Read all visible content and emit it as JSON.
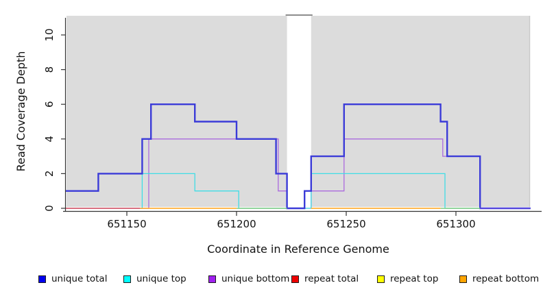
{
  "figure": {
    "xlabel": "Coordinate in Reference Genome",
    "ylabel": "Read Coverage Depth",
    "plot_bg_color": "#dcdcdc",
    "mask_band_color": "#ffffff",
    "axis_color": "#333333",
    "text_color": "#111111",
    "top_border_color": "#8c8c8c",
    "right_border_color": "#c9c9c9"
  },
  "chart_data": {
    "type": "line",
    "subtype": "step-coverage",
    "xlabel": "Coordinate in Reference Genome",
    "ylabel": "Read Coverage Depth",
    "xlim": [
      651122,
      651334
    ],
    "ylim": [
      0,
      11.2
    ],
    "x_ticks": [
      651150,
      651200,
      651250,
      651300
    ],
    "y_ticks": [
      0,
      2,
      4,
      6,
      8,
      10
    ],
    "grid": false,
    "legend_position": "bottom",
    "mask_band": {
      "x_start": 651223,
      "x_end": 651234
    },
    "series": [
      {
        "name": "unique total",
        "color": "#3b3bd8",
        "width": 2.4,
        "steps": [
          [
            651122,
            1
          ],
          [
            651137,
            2
          ],
          [
            651157,
            4
          ],
          [
            651161,
            6
          ],
          [
            651181,
            5
          ],
          [
            651200,
            4
          ],
          [
            651218,
            2
          ],
          [
            651223,
            0
          ],
          [
            651231,
            1
          ],
          [
            651234,
            3
          ],
          [
            651249,
            6
          ],
          [
            651293,
            5
          ],
          [
            651296,
            3
          ],
          [
            651311,
            0
          ],
          [
            651334,
            0
          ]
        ]
      },
      {
        "name": "unique top",
        "color": "#3fdde6",
        "width": 1.3,
        "steps": [
          [
            651122,
            0
          ],
          [
            651157,
            2
          ],
          [
            651181,
            1
          ],
          [
            651201,
            0
          ],
          [
            651234,
            2
          ],
          [
            651295,
            0
          ],
          [
            651334,
            0
          ]
        ]
      },
      {
        "name": "unique bottom",
        "color": "#aa6ade",
        "width": 1.3,
        "steps": [
          [
            651122,
            0
          ],
          [
            651160,
            4
          ],
          [
            651219,
            1
          ],
          [
            651223,
            0
          ],
          [
            651234,
            1
          ],
          [
            651249,
            4
          ],
          [
            651294,
            3
          ],
          [
            651311,
            0
          ],
          [
            651334,
            0
          ]
        ]
      },
      {
        "name": "repeat total",
        "color": "#e04b59",
        "width": 1.3,
        "steps": [
          [
            651122,
            0
          ],
          [
            651334,
            0
          ]
        ],
        "note": "zero depth everywhere; visible only on baseline segments"
      },
      {
        "name": "repeat top",
        "color": "#ffff00",
        "width": 1.3,
        "steps": [
          [
            651122,
            0
          ],
          [
            651334,
            0
          ]
        ],
        "note": "zero depth everywhere; hidden under other baseline lines"
      },
      {
        "name": "repeat bottom",
        "color": "#ffa014",
        "width": 1.5,
        "steps": [
          [
            651122,
            0
          ],
          [
            651334,
            0
          ]
        ],
        "note": "zero depth everywhere; visible only on baseline segments"
      }
    ],
    "baseline_visible_segments": [
      {
        "source": "repeat total",
        "color": "#e04b59",
        "x": [
          651122,
          651156
        ]
      },
      {
        "source": "repeat bottom",
        "color": "#ffa014",
        "x": [
          651156,
          651200
        ]
      },
      {
        "source": "line overlap",
        "color": "#7cc87c",
        "x": [
          651200,
          651223
        ]
      },
      {
        "source": "repeat bottom",
        "color": "#ffa014",
        "x": [
          651234,
          651293
        ]
      },
      {
        "source": "line overlap",
        "color": "#7cc87c",
        "x": [
          651293,
          651311
        ]
      },
      {
        "source": "line overlap",
        "color": "#5d49dd",
        "x": [
          651311,
          651334
        ]
      }
    ]
  },
  "legend": {
    "items": [
      {
        "label": "unique total",
        "color": "#0000ee"
      },
      {
        "label": "unique top",
        "color": "#00ffff"
      },
      {
        "label": "unique bottom",
        "color": "#a020f0"
      },
      {
        "label": "repeat total",
        "color": "#ee0000"
      },
      {
        "label": "repeat top",
        "color": "#ffff00"
      },
      {
        "label": "repeat bottom",
        "color": "#ffa500"
      }
    ]
  }
}
